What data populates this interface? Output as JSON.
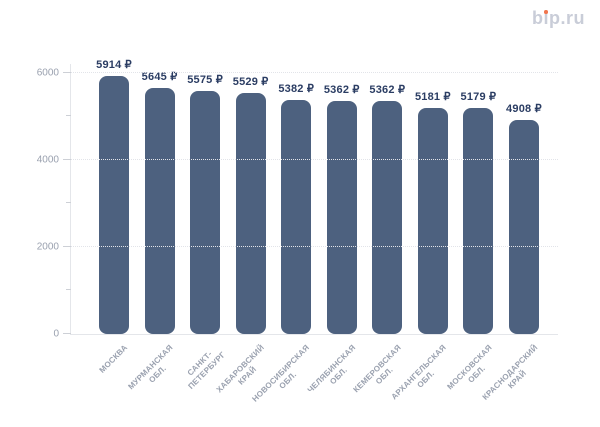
{
  "logo": {
    "text": "bip.ru",
    "part1": "b",
    "part2": "ı",
    "part3": "p.ru"
  },
  "colors": {
    "bar": "#4d617f",
    "value_label": "#2b3d63",
    "axis_label": "#9aa1af",
    "grid": "#e2e4e9",
    "axis_line": "#e4e6ea",
    "logo_text": "#c9cdd8",
    "logo_dot": "#f0754e",
    "background": "#ffffff"
  },
  "chart_data": {
    "type": "bar",
    "title": "",
    "xlabel": "",
    "ylabel": "",
    "legend": "none",
    "grid": "horizontal dotted at major yticks",
    "categories": [
      "МОСКВА",
      "МУРМАНСКАЯ ОБЛ.",
      "САНКТ-ПЕТЕРБУРГ",
      "ХАБАРОВСКИЙ КРАЙ",
      "НОВОСИБИРСКАЯ ОБЛ.",
      "ЧЕЛЯБИНСКАЯ ОБЛ.",
      "КЕМЕРОВСКАЯ ОБЛ.",
      "АРХАНГЕЛЬСКАЯ ОБЛ.",
      "МОСКОВСКАЯ ОБЛ.",
      "КРАСНОДАРСКИЙ КРАЙ"
    ],
    "category_lines": [
      [
        "МОСКВА"
      ],
      [
        "МУРМАНСКАЯ",
        "ОБЛ."
      ],
      [
        "САНКТ-",
        "ПЕТЕРБУРГ"
      ],
      [
        "ХАБАРОВСКИЙ",
        "КРАЙ"
      ],
      [
        "НОВОСИБИРСКАЯ",
        "ОБЛ."
      ],
      [
        "ЧЕЛЯБИНСКАЯ",
        "ОБЛ."
      ],
      [
        "КЕМЕРОВСКАЯ",
        "ОБЛ."
      ],
      [
        "АРХАНГЕЛЬСКАЯ",
        "ОБЛ."
      ],
      [
        "МОСКОВСКАЯ",
        "ОБЛ."
      ],
      [
        "КРАСНОДАРСКИЙ",
        "КРАЙ"
      ]
    ],
    "values": [
      5914,
      5645,
      5575,
      5529,
      5382,
      5362,
      5362,
      5181,
      5179,
      4908
    ],
    "value_labels": [
      "5914 ₽",
      "5645 ₽",
      "5575 ₽",
      "5529 ₽",
      "5382 ₽",
      "5362 ₽",
      "5362 ₽",
      "5181 ₽",
      "5179 ₽",
      "4908 ₽"
    ],
    "currency": "₽",
    "ylim": [
      0,
      6200
    ],
    "yticks": [
      0,
      2000,
      4000,
      6000
    ],
    "ytick_labels": [
      "0",
      "2000",
      "4000",
      "6000"
    ],
    "ytick_minor": [
      1000,
      3000,
      5000
    ]
  }
}
